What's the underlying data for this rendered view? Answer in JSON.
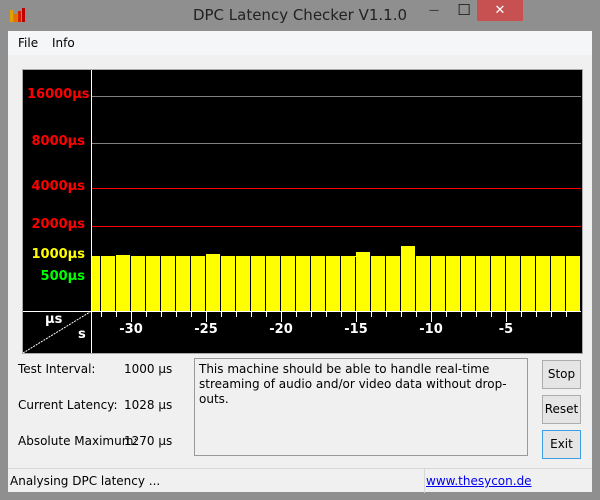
{
  "window": {
    "title": "DPC Latency Checker V1.1.0",
    "minimize_icon": "minimize-icon",
    "maximize_icon": "maximize-icon",
    "close_icon": "close-icon",
    "close": "✕",
    "minimize": "—",
    "maximize": "☐"
  },
  "menu": {
    "items": [
      "File",
      "Info"
    ]
  },
  "chart_data": {
    "type": "bar",
    "y_scale": "log",
    "y_tick_labels": [
      {
        "value": 16000,
        "label": "16000µs",
        "color": "#ff0000"
      },
      {
        "value": 8000,
        "label": "8000µs",
        "color": "#ff0000"
      },
      {
        "value": 4000,
        "label": "4000µs",
        "color": "#ff0000"
      },
      {
        "value": 2000,
        "label": "2000µs",
        "color": "#ff0000"
      },
      {
        "value": 1000,
        "label": "1000µs",
        "color": "#ffff00"
      },
      {
        "value": 500,
        "label": "500µs",
        "color": "#00ff00"
      }
    ],
    "x_tick_labels": [
      "-30",
      "-25",
      "-20",
      "-15",
      "-10",
      "-5"
    ],
    "x_ticks": [
      -30,
      -25,
      -20,
      -15,
      -10,
      -5
    ],
    "xlim": [
      -33,
      0
    ],
    "corner_y_unit": "µs",
    "corner_x_unit": "s",
    "bar_color": "#ffff00",
    "values": [
      1000,
      1000,
      1028,
      1000,
      1000,
      1000,
      1000,
      1000,
      1050,
      1000,
      1000,
      1000,
      1000,
      1000,
      1000,
      1000,
      1000,
      980,
      1100,
      1000,
      1000,
      1270,
      1000,
      1000,
      1000,
      1000,
      1000,
      1000,
      1000,
      1000,
      1000,
      1000,
      1000
    ]
  },
  "stats": [
    {
      "label": "Test Interval:",
      "value": "1000 µs"
    },
    {
      "label": "Current Latency:",
      "value": "1028 µs"
    },
    {
      "label": "Absolute Maximum:",
      "value": "1270 µs"
    }
  ],
  "message": "This machine should be able to handle real-time streaming of audio and/or video data without drop-outs.",
  "buttons": {
    "stop": "Stop",
    "reset": "Reset",
    "exit": "Exit"
  },
  "status": {
    "text": "Analysing DPC latency ...",
    "link": "www.thesycon.de"
  }
}
